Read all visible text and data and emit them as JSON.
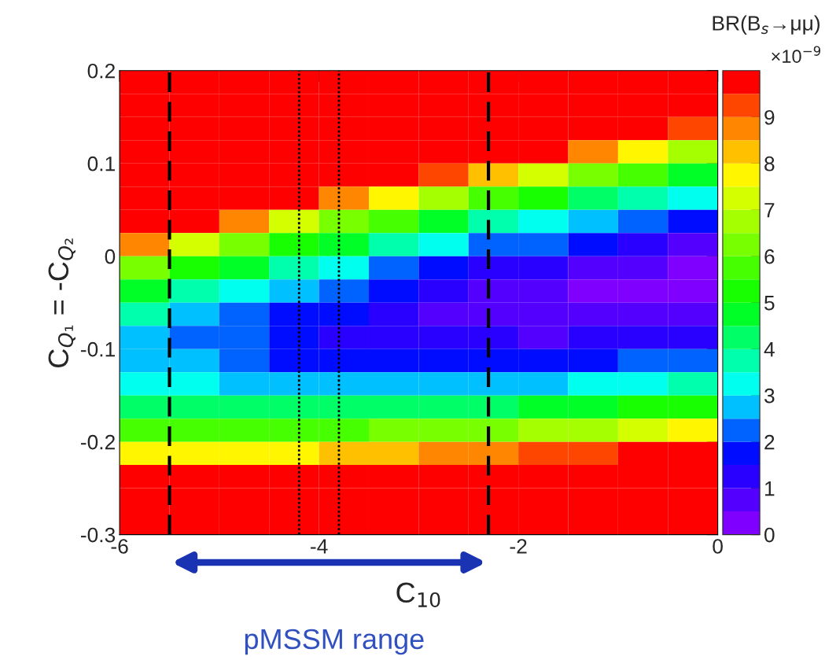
{
  "chart_data": {
    "type": "heatmap",
    "xlabel": "C$_{10}$",
    "ylabel": "C$_{Q₁}$ = -C$_{Q₂}$",
    "clabel": "BR(B$_{s}$→μμ)",
    "xlim": [
      -6,
      0
    ],
    "ylim": [
      -0.3,
      0.2
    ],
    "xticks": [
      -6,
      -4,
      -2,
      0
    ],
    "yticks": [
      -0.3,
      -0.2,
      -0.1,
      0,
      0.1,
      0.2
    ],
    "clim": [
      0,
      10
    ],
    "cticks": [
      0,
      1,
      2,
      3,
      4,
      5,
      6,
      7,
      8,
      9
    ],
    "cells": [
      [
        10,
        10,
        10,
        10,
        10,
        10,
        10,
        10,
        10,
        10,
        10,
        10
      ],
      [
        10,
        10,
        10,
        10,
        10,
        10,
        10,
        10,
        10,
        10,
        10,
        10
      ],
      [
        10,
        10,
        10,
        10,
        10,
        10,
        10,
        10,
        10,
        10,
        10,
        9.2
      ],
      [
        10,
        10,
        10,
        10,
        10,
        10,
        10,
        10,
        9.7,
        8.6,
        7.7,
        6.8
      ],
      [
        10,
        10,
        10,
        10,
        10,
        10,
        9.2,
        8.1,
        7.1,
        6.2,
        5.5,
        4.7
      ],
      [
        10,
        10,
        10,
        10,
        8.9,
        7.7,
        6.7,
        5.8,
        5.0,
        4.2,
        3.7,
        3.1
      ],
      [
        10,
        9.8,
        8.6,
        7.4,
        6.4,
        5.5,
        4.7,
        3.9,
        3.3,
        2.7,
        2.2,
        1.8
      ],
      [
        8.5,
        7.3,
        6.3,
        5.3,
        4.5,
        3.7,
        3.1,
        2.4,
        2.0,
        1.5,
        1.2,
        0.9
      ],
      [
        6.3,
        5.3,
        4.5,
        3.7,
        3.0,
        2.4,
        1.9,
        1.4,
        1.1,
        0.8,
        0.6,
        0.4
      ],
      [
        4.7,
        3.9,
        3.2,
        2.5,
        2.0,
        1.5,
        1.2,
        0.8,
        0.6,
        0.4,
        0.3,
        0.3
      ],
      [
        3.5,
        2.9,
        2.3,
        1.8,
        1.5,
        1.1,
        0.9,
        0.7,
        0.6,
        0.5,
        0.5,
        0.6
      ],
      [
        2.9,
        2.4,
        2.0,
        1.7,
        1.4,
        1.2,
        1.0,
        1.0,
        0.9,
        1.0,
        1.1,
        1.2
      ],
      [
        2.8,
        2.5,
        2.2,
        1.9,
        1.8,
        1.7,
        1.6,
        1.7,
        1.7,
        1.9,
        2.0,
        2.2
      ],
      [
        3.2,
        3.0,
        2.8,
        2.7,
        2.6,
        2.7,
        2.7,
        2.8,
        2.9,
        3.1,
        3.3,
        3.6
      ],
      [
        4.2,
        4.1,
        4.0,
        4.0,
        4.0,
        4.1,
        4.2,
        4.4,
        4.6,
        4.8,
        5.1,
        5.4
      ],
      [
        5.6,
        5.6,
        5.6,
        5.7,
        5.8,
        6.0,
        6.1,
        6.4,
        6.6,
        6.9,
        7.2,
        7.6
      ],
      [
        7.6,
        7.7,
        7.7,
        7.9,
        8.0,
        8.3,
        8.5,
        8.8,
        9.1,
        9.4,
        9.7,
        10
      ],
      [
        10,
        10,
        10,
        10,
        10,
        10,
        10,
        10,
        10,
        10,
        10,
        10
      ],
      [
        10,
        10,
        10,
        10,
        10,
        10,
        10,
        10,
        10,
        10,
        10,
        10
      ],
      [
        10,
        10,
        10,
        10,
        10,
        10,
        10,
        10,
        10,
        10,
        10,
        10
      ]
    ],
    "ref_lines": [
      {
        "axis": "x",
        "value": -5.5,
        "color": "#000000",
        "line_style": "dashed"
      },
      {
        "axis": "x",
        "value": -2.3,
        "color": "#000000",
        "line_style": "dashed"
      },
      {
        "axis": "x",
        "value": -4.2,
        "color": "#000000",
        "line_style": "dotted"
      },
      {
        "axis": "x",
        "value": -3.8,
        "color": "#000000",
        "line_style": "dotted"
      }
    ],
    "annotations": [
      "×10$^{−9}$",
      "pMSSM range"
    ]
  }
}
